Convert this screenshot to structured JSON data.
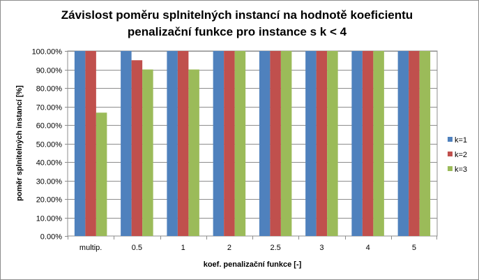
{
  "chart_data": {
    "type": "bar",
    "title_line1": "Závislost poměru splnitelných instancí na hodnotě koeficientu",
    "title_line2": "penalizační funkce pro instance s k < 4",
    "xlabel": "koef. penalizační  funkce [-]",
    "ylabel": "poměr splnitelných  instancí [%]",
    "categories": [
      "multip.",
      "0.5",
      "1",
      "2",
      "2.5",
      "3",
      "4",
      "5"
    ],
    "y_ticks": [
      "0.00%",
      "10.00%",
      "20.00%",
      "30.00%",
      "40.00%",
      "50.00%",
      "60.00%",
      "70.00%",
      "80.00%",
      "90.00%",
      "100.00%"
    ],
    "ylim": [
      0,
      100
    ],
    "grid": true,
    "legend_position": "right",
    "series": [
      {
        "name": "k=1",
        "color": "#4f81bd",
        "values": [
          100,
          100,
          100,
          100,
          100,
          100,
          100,
          100
        ]
      },
      {
        "name": "k=2",
        "color": "#c0504d",
        "values": [
          100,
          95,
          100,
          100,
          100,
          100,
          100,
          100
        ]
      },
      {
        "name": "k=3",
        "color": "#9bbb59",
        "values": [
          66.67,
          90,
          90,
          100,
          100,
          100,
          100,
          100
        ]
      }
    ]
  }
}
